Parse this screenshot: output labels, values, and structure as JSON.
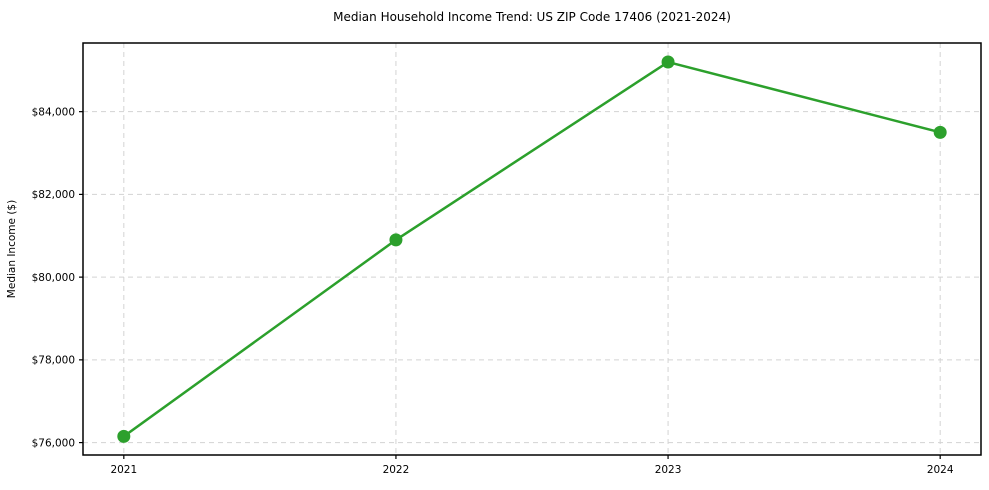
{
  "figure": {
    "background": "#ffffff"
  },
  "chart_data": {
    "type": "line",
    "title": "Median Household Income Trend: US ZIP Code 17406 (2021-2024)",
    "xlabel": "",
    "ylabel": "Median Income ($)",
    "x": [
      2021,
      2022,
      2023,
      2024
    ],
    "x_tick_labels": [
      "2021",
      "2022",
      "2023",
      "2024"
    ],
    "values": [
      76150,
      80900,
      85200,
      83500
    ],
    "y_ticks": [
      76000,
      78000,
      80000,
      82000,
      84000
    ],
    "y_tick_labels": [
      "$76,000",
      "$78,000",
      "$80,000",
      "$82,000",
      "$84,000"
    ],
    "xlim": [
      2020.85,
      2024.15
    ],
    "ylim": [
      75700,
      85660
    ],
    "grid": true,
    "grid_style": "dashed",
    "legend_position": "none",
    "line_color": "#2ca02c",
    "marker": "circle",
    "marker_size": 6.5,
    "line_width": 2.5,
    "grid_color": "#d3d3d3",
    "axis_color": "#000000",
    "text_color": "#000000"
  }
}
